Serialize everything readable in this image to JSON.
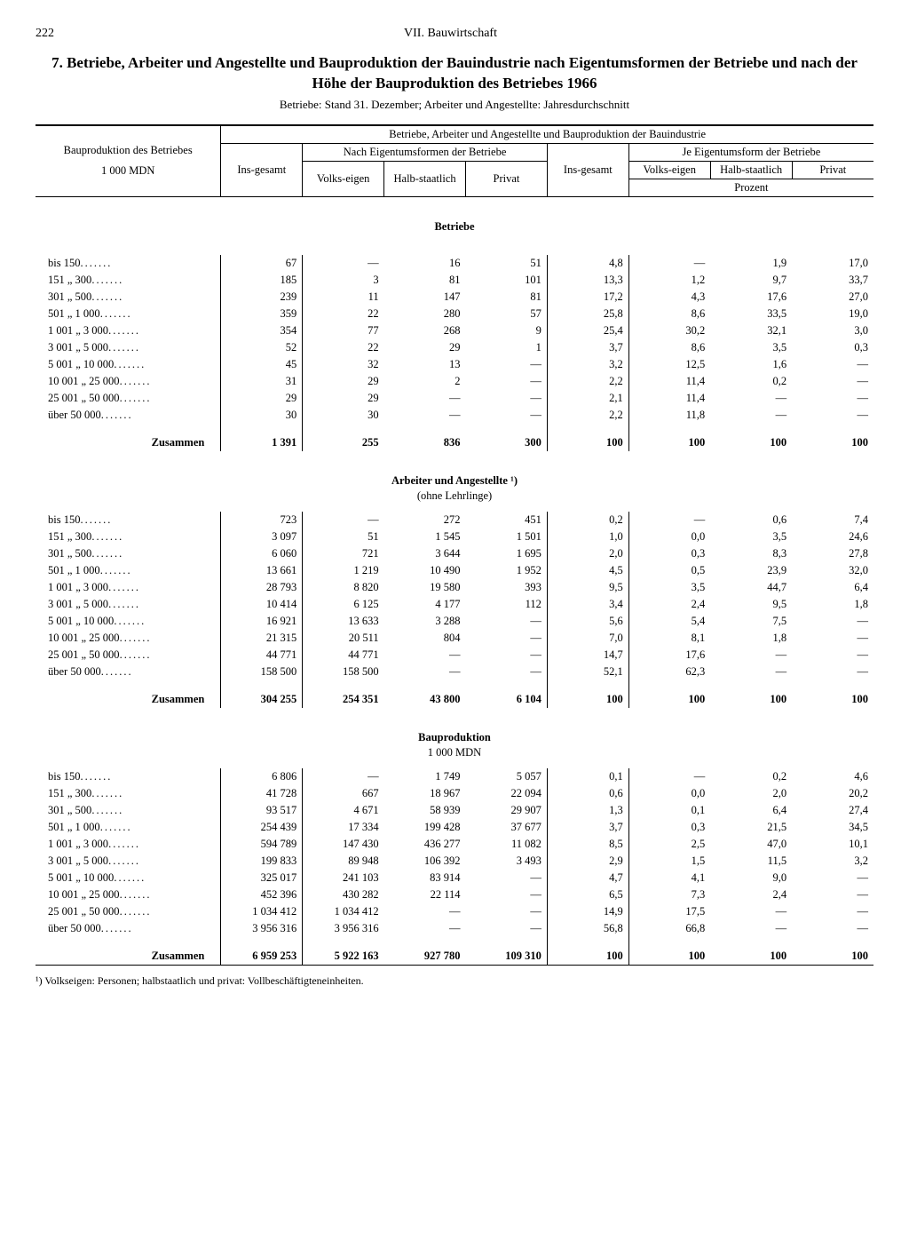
{
  "page_number": "222",
  "chapter": "VII. Bauwirtschaft",
  "title": "7. Betriebe, Arbeiter und Angestellte und Bauproduktion der Bauindustrie nach Eigentumsformen der Betriebe und nach der Höhe der Bauproduktion des Betriebes 1966",
  "subtitle": "Betriebe: Stand 31. Dezember; Arbeiter und Angestellte: Jahresdurchschnitt",
  "header": {
    "left_top": "Bauproduktion des Betriebes",
    "left_bottom": "1 000 MDN",
    "super": "Betriebe, Arbeiter und Angestellte und Bauproduktion der Bauindustrie",
    "insgesamt": "Ins-gesamt",
    "nach": "Nach Eigentumsformen der Betriebe",
    "je": "Je Eigentumsform der Betriebe",
    "volks": "Volks-eigen",
    "halb": "Halb-staatlich",
    "privat": "Privat",
    "prozent": "Prozent"
  },
  "row_labels": [
    "bis       150",
    "151   „   300",
    "301   „   500",
    "501   „ 1 000",
    "1 001 „ 3 000",
    "3 001 „ 5 000",
    "5 001 „ 10 000",
    "10 001 „ 25 000",
    "25 001 „ 50 000",
    "über 50 000"
  ],
  "zusammen": "Zusammen",
  "sections": [
    {
      "title": "Betriebe",
      "sub": "",
      "rows": [
        [
          "67",
          "—",
          "16",
          "51",
          "4,8",
          "—",
          "1,9",
          "17,0"
        ],
        [
          "185",
          "3",
          "81",
          "101",
          "13,3",
          "1,2",
          "9,7",
          "33,7"
        ],
        [
          "239",
          "11",
          "147",
          "81",
          "17,2",
          "4,3",
          "17,6",
          "27,0"
        ],
        [
          "359",
          "22",
          "280",
          "57",
          "25,8",
          "8,6",
          "33,5",
          "19,0"
        ],
        [
          "354",
          "77",
          "268",
          "9",
          "25,4",
          "30,2",
          "32,1",
          "3,0"
        ],
        [
          "52",
          "22",
          "29",
          "1",
          "3,7",
          "8,6",
          "3,5",
          "0,3"
        ],
        [
          "45",
          "32",
          "13",
          "—",
          "3,2",
          "12,5",
          "1,6",
          "—"
        ],
        [
          "31",
          "29",
          "2",
          "—",
          "2,2",
          "11,4",
          "0,2",
          "—"
        ],
        [
          "29",
          "29",
          "—",
          "—",
          "2,1",
          "11,4",
          "—",
          "—"
        ],
        [
          "30",
          "30",
          "—",
          "—",
          "2,2",
          "11,8",
          "—",
          "—"
        ]
      ],
      "sum": [
        "1 391",
        "255",
        "836",
        "300",
        "100",
        "100",
        "100",
        "100"
      ]
    },
    {
      "title": "Arbeiter und Angestellte ¹)",
      "sub": "(ohne Lehrlinge)",
      "rows": [
        [
          "723",
          "—",
          "272",
          "451",
          "0,2",
          "—",
          "0,6",
          "7,4"
        ],
        [
          "3 097",
          "51",
          "1 545",
          "1 501",
          "1,0",
          "0,0",
          "3,5",
          "24,6"
        ],
        [
          "6 060",
          "721",
          "3 644",
          "1 695",
          "2,0",
          "0,3",
          "8,3",
          "27,8"
        ],
        [
          "13 661",
          "1 219",
          "10 490",
          "1 952",
          "4,5",
          "0,5",
          "23,9",
          "32,0"
        ],
        [
          "28 793",
          "8 820",
          "19 580",
          "393",
          "9,5",
          "3,5",
          "44,7",
          "6,4"
        ],
        [
          "10 414",
          "6 125",
          "4 177",
          "112",
          "3,4",
          "2,4",
          "9,5",
          "1,8"
        ],
        [
          "16 921",
          "13 633",
          "3 288",
          "—",
          "5,6",
          "5,4",
          "7,5",
          "—"
        ],
        [
          "21 315",
          "20 511",
          "804",
          "—",
          "7,0",
          "8,1",
          "1,8",
          "—"
        ],
        [
          "44 771",
          "44 771",
          "—",
          "—",
          "14,7",
          "17,6",
          "—",
          "—"
        ],
        [
          "158 500",
          "158 500",
          "—",
          "—",
          "52,1",
          "62,3",
          "—",
          "—"
        ]
      ],
      "sum": [
        "304 255",
        "254 351",
        "43 800",
        "6 104",
        "100",
        "100",
        "100",
        "100"
      ]
    },
    {
      "title": "Bauproduktion",
      "sub": "1 000 MDN",
      "rows": [
        [
          "6 806",
          "—",
          "1 749",
          "5 057",
          "0,1",
          "—",
          "0,2",
          "4,6"
        ],
        [
          "41 728",
          "667",
          "18 967",
          "22 094",
          "0,6",
          "0,0",
          "2,0",
          "20,2"
        ],
        [
          "93 517",
          "4 671",
          "58 939",
          "29 907",
          "1,3",
          "0,1",
          "6,4",
          "27,4"
        ],
        [
          "254 439",
          "17 334",
          "199 428",
          "37 677",
          "3,7",
          "0,3",
          "21,5",
          "34,5"
        ],
        [
          "594 789",
          "147 430",
          "436 277",
          "11 082",
          "8,5",
          "2,5",
          "47,0",
          "10,1"
        ],
        [
          "199 833",
          "89 948",
          "106 392",
          "3 493",
          "2,9",
          "1,5",
          "11,5",
          "3,2"
        ],
        [
          "325 017",
          "241 103",
          "83 914",
          "—",
          "4,7",
          "4,1",
          "9,0",
          "—"
        ],
        [
          "452 396",
          "430 282",
          "22 114",
          "—",
          "6,5",
          "7,3",
          "2,4",
          "—"
        ],
        [
          "1 034 412",
          "1 034 412",
          "—",
          "—",
          "14,9",
          "17,5",
          "—",
          "—"
        ],
        [
          "3 956 316",
          "3 956 316",
          "—",
          "—",
          "56,8",
          "66,8",
          "—",
          "—"
        ]
      ],
      "sum": [
        "6 959 253",
        "5 922 163",
        "927 780",
        "109 310",
        "100",
        "100",
        "100",
        "100"
      ]
    }
  ],
  "footnote": "¹) Volkseigen: Personen; halbstaatlich und privat: Vollbeschäftigteneinheiten."
}
